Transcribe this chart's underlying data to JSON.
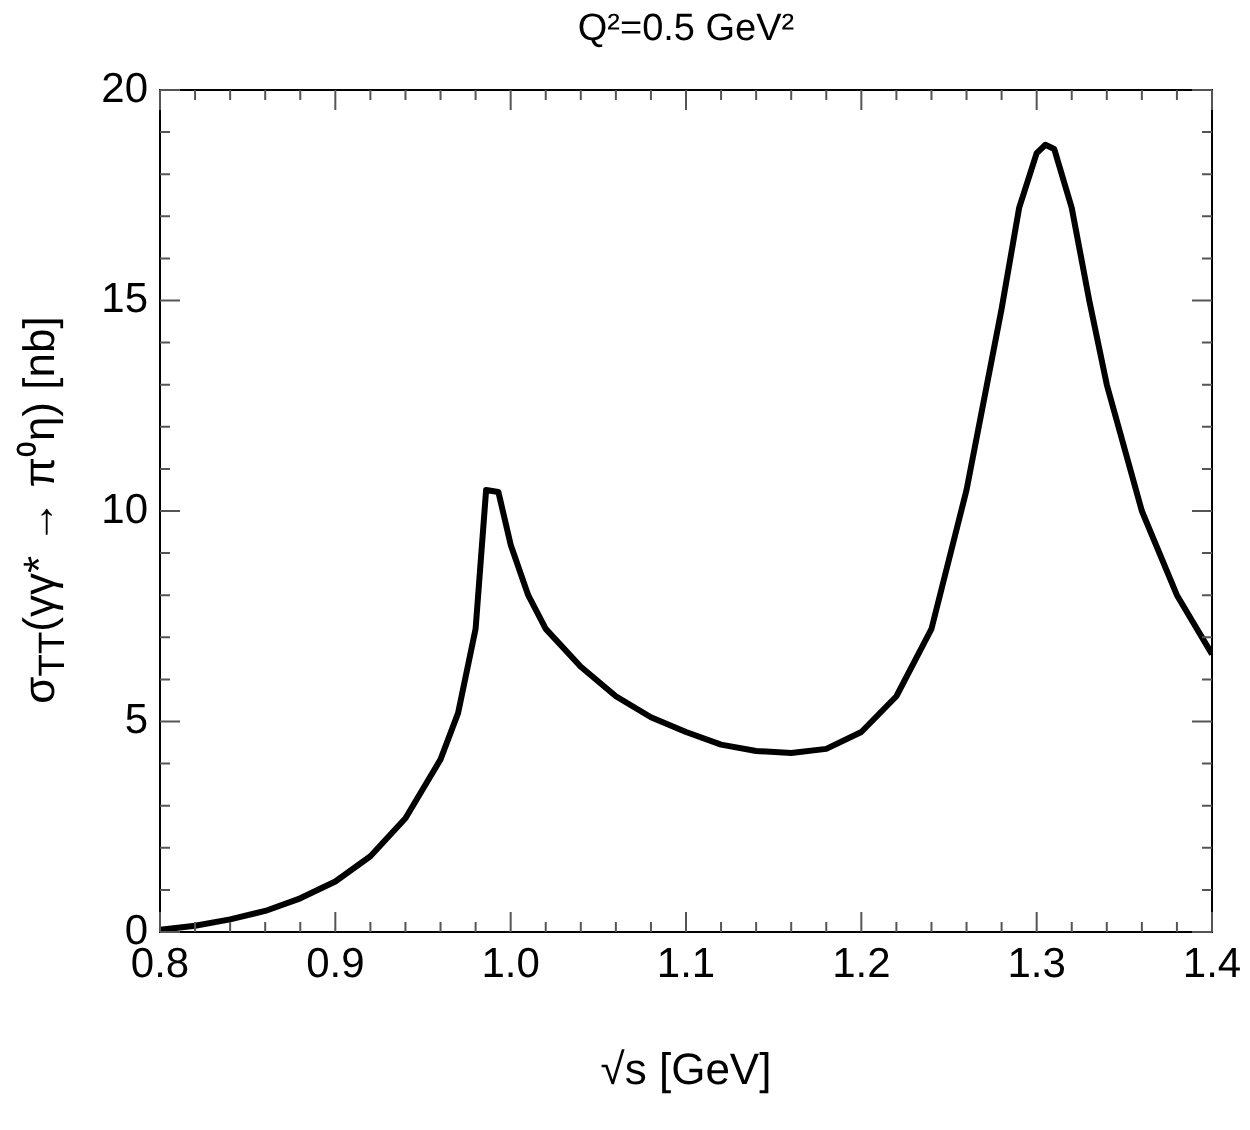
{
  "chart_data": {
    "type": "line",
    "title": "Q²=0.5 GeV²",
    "xlabel": "√s  [GeV]",
    "ylabel": "σ$_{TT}$(γγ* → π⁰η) [nb]",
    "x": [
      0.8,
      0.82,
      0.84,
      0.86,
      0.88,
      0.9,
      0.92,
      0.94,
      0.96,
      0.97,
      0.98,
      0.986,
      0.993,
      1.0,
      1.01,
      1.02,
      1.04,
      1.06,
      1.08,
      1.1,
      1.12,
      1.14,
      1.16,
      1.18,
      1.2,
      1.22,
      1.24,
      1.26,
      1.28,
      1.29,
      1.3,
      1.305,
      1.31,
      1.32,
      1.33,
      1.34,
      1.36,
      1.38,
      1.4
    ],
    "series": [
      {
        "color": "#000000",
        "values": [
          0.05,
          0.15,
          0.3,
          0.5,
          0.8,
          1.2,
          1.8,
          2.7,
          4.1,
          5.2,
          7.2,
          10.5,
          10.45,
          9.2,
          8.0,
          7.2,
          6.3,
          5.6,
          5.1,
          4.75,
          4.45,
          4.3,
          4.25,
          4.35,
          4.75,
          5.6,
          7.2,
          10.5,
          14.8,
          17.2,
          18.5,
          18.7,
          18.6,
          17.2,
          15.0,
          13.0,
          10.0,
          8.0,
          6.6
        ]
      }
    ],
    "xlim": [
      0.8,
      1.4
    ],
    "xticks": [
      {
        "value": 0.8,
        "label": "0.8"
      },
      {
        "value": 0.82,
        "label": null
      },
      {
        "value": 0.84,
        "label": null
      },
      {
        "value": 0.86,
        "label": null
      },
      {
        "value": 0.88,
        "label": null
      },
      {
        "value": 0.9,
        "label": "0.9"
      },
      {
        "value": 0.92,
        "label": null
      },
      {
        "value": 0.94,
        "label": null
      },
      {
        "value": 0.96,
        "label": null
      },
      {
        "value": 0.98,
        "label": null
      },
      {
        "value": 1.0,
        "label": "1.0"
      },
      {
        "value": 1.02,
        "label": null
      },
      {
        "value": 1.04,
        "label": null
      },
      {
        "value": 1.06,
        "label": null
      },
      {
        "value": 1.08,
        "label": null
      },
      {
        "value": 1.1,
        "label": "1.1"
      },
      {
        "value": 1.12,
        "label": null
      },
      {
        "value": 1.14,
        "label": null
      },
      {
        "value": 1.16,
        "label": null
      },
      {
        "value": 1.18,
        "label": null
      },
      {
        "value": 1.2,
        "label": "1.2"
      },
      {
        "value": 1.22,
        "label": null
      },
      {
        "value": 1.24,
        "label": null
      },
      {
        "value": 1.26,
        "label": null
      },
      {
        "value": 1.28,
        "label": null
      },
      {
        "value": 1.3,
        "label": "1.3"
      },
      {
        "value": 1.32,
        "label": null
      },
      {
        "value": 1.34,
        "label": null
      },
      {
        "value": 1.36,
        "label": null
      },
      {
        "value": 1.38,
        "label": null
      },
      {
        "value": 1.4,
        "label": "1.4"
      }
    ],
    "ylim": [
      0,
      20
    ],
    "yticks": [
      0,
      {
        "value": 1,
        "label": null
      },
      {
        "value": 2,
        "label": null
      },
      {
        "value": 3,
        "label": null
      },
      {
        "value": 4,
        "label": null
      },
      5,
      {
        "value": 6,
        "label": null
      },
      {
        "value": 7,
        "label": null
      },
      {
        "value": 8,
        "label": null
      },
      {
        "value": 9,
        "label": null
      },
      10,
      {
        "value": 11,
        "label": null
      },
      {
        "value": 12,
        "label": null
      },
      {
        "value": 13,
        "label": null
      },
      {
        "value": 14,
        "label": null
      },
      15,
      {
        "value": 16,
        "label": null
      },
      {
        "value": 17,
        "label": null
      },
      {
        "value": 18,
        "label": null
      },
      {
        "value": 19,
        "label": null
      },
      20
    ]
  }
}
